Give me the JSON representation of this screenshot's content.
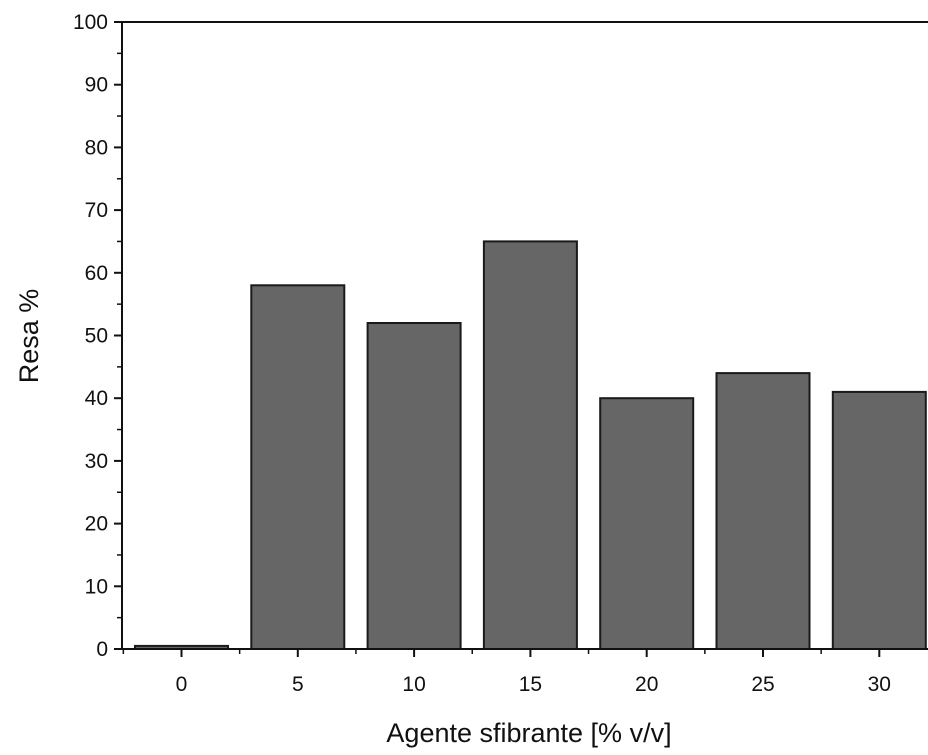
{
  "chart_data": {
    "type": "bar",
    "title": "",
    "xlabel": "Agente sfibrante [% v/v]",
    "ylabel": "Resa %",
    "categories": [
      "0",
      "5",
      "10",
      "15",
      "20",
      "25",
      "30"
    ],
    "values": [
      0.5,
      58,
      52,
      65,
      40,
      44,
      41
    ],
    "ylim": [
      0,
      100
    ],
    "yticks": [
      0,
      10,
      20,
      30,
      40,
      50,
      60,
      70,
      80,
      90,
      100
    ],
    "grid": false,
    "legend": "none",
    "colors": {
      "bar_fill": "#666666",
      "bar_stroke": "#1a1a1a",
      "axis": "#111111"
    }
  }
}
